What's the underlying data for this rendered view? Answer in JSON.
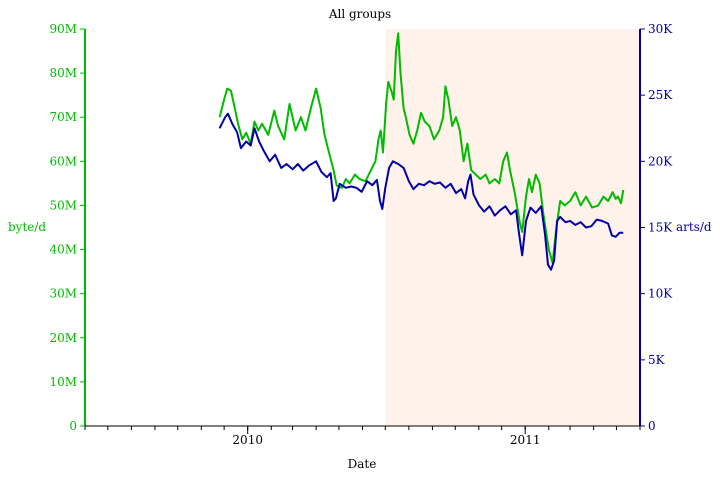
{
  "chart_data": {
    "type": "line",
    "title": "All groups",
    "xlabel": "Date",
    "ylabel_left": "byte/d",
    "ylabel_right": "arts/d",
    "colors": {
      "left_axis": "#00bb00",
      "right_axis": "#000099",
      "highlight": "#fff2ea",
      "bytes_series": "#00bb00",
      "arts_series": "#0000aa"
    },
    "x_range": [
      "2009-06-01",
      "2011-06-01"
    ],
    "x_ticks": [
      {
        "date": "2010-01-01",
        "label": "2010"
      },
      {
        "date": "2011-01-01",
        "label": "2011"
      }
    ],
    "highlight_range": [
      "2010-07-01",
      "2011-06-01"
    ],
    "y_left": {
      "range": [
        0,
        90000000
      ],
      "ticks": [
        {
          "value": 0,
          "label": "0"
        },
        {
          "value": 10000000,
          "label": "10M"
        },
        {
          "value": 20000000,
          "label": "20M"
        },
        {
          "value": 30000000,
          "label": "30M"
        },
        {
          "value": 40000000,
          "label": "40M"
        },
        {
          "value": 50000000,
          "label": "50M"
        },
        {
          "value": 60000000,
          "label": "60M"
        },
        {
          "value": 70000000,
          "label": "70M"
        },
        {
          "value": 80000000,
          "label": "80M"
        },
        {
          "value": 90000000,
          "label": "90M"
        }
      ]
    },
    "y_right": {
      "range": [
        0,
        30000
      ],
      "ticks": [
        {
          "value": 0,
          "label": "0"
        },
        {
          "value": 5000,
          "label": "5K"
        },
        {
          "value": 10000,
          "label": "10K"
        },
        {
          "value": 15000,
          "label": "15K"
        },
        {
          "value": 20000,
          "label": "20K"
        },
        {
          "value": 25000,
          "label": "25K"
        },
        {
          "value": 30000,
          "label": "30K"
        }
      ]
    },
    "series": [
      {
        "axis": "left",
        "color": "#00bb00",
        "points": [
          [
            "2009-11-25",
            70000000
          ],
          [
            "2009-12-01",
            74000000
          ],
          [
            "2009-12-05",
            76500000
          ],
          [
            "2009-12-10",
            76000000
          ],
          [
            "2009-12-15",
            72000000
          ],
          [
            "2009-12-20",
            68000000
          ],
          [
            "2009-12-25",
            65000000
          ],
          [
            "2009-12-30",
            66500000
          ],
          [
            "2010-01-05",
            64000000
          ],
          [
            "2010-01-10",
            69000000
          ],
          [
            "2010-01-15",
            67000000
          ],
          [
            "2010-01-20",
            68500000
          ],
          [
            "2010-01-28",
            66000000
          ],
          [
            "2010-02-05",
            71500000
          ],
          [
            "2010-02-10",
            68000000
          ],
          [
            "2010-02-18",
            65000000
          ],
          [
            "2010-02-25",
            73000000
          ],
          [
            "2010-03-05",
            67000000
          ],
          [
            "2010-03-12",
            70000000
          ],
          [
            "2010-03-18",
            67000000
          ],
          [
            "2010-03-25",
            72000000
          ],
          [
            "2010-04-01",
            76500000
          ],
          [
            "2010-04-07",
            72000000
          ],
          [
            "2010-04-12",
            66000000
          ],
          [
            "2010-04-18",
            62000000
          ],
          [
            "2010-04-24",
            58000000
          ],
          [
            "2010-04-28",
            54500000
          ],
          [
            "2010-05-05",
            54000000
          ],
          [
            "2010-05-10",
            56000000
          ],
          [
            "2010-05-15",
            55000000
          ],
          [
            "2010-05-22",
            57000000
          ],
          [
            "2010-05-28",
            56000000
          ],
          [
            "2010-06-05",
            55500000
          ],
          [
            "2010-06-12",
            58000000
          ],
          [
            "2010-06-18",
            60000000
          ],
          [
            "2010-06-22",
            65000000
          ],
          [
            "2010-06-25",
            67000000
          ],
          [
            "2010-06-28",
            62000000
          ],
          [
            "2010-07-02",
            73000000
          ],
          [
            "2010-07-05",
            78000000
          ],
          [
            "2010-07-09",
            76000000
          ],
          [
            "2010-07-12",
            74000000
          ],
          [
            "2010-07-15",
            85000000
          ],
          [
            "2010-07-18",
            89000000
          ],
          [
            "2010-07-21",
            80000000
          ],
          [
            "2010-07-25",
            72000000
          ],
          [
            "2010-07-28",
            70000000
          ],
          [
            "2010-08-02",
            66000000
          ],
          [
            "2010-08-07",
            64000000
          ],
          [
            "2010-08-12",
            67000000
          ],
          [
            "2010-08-17",
            71000000
          ],
          [
            "2010-08-22",
            69000000
          ],
          [
            "2010-08-28",
            68000000
          ],
          [
            "2010-09-03",
            65000000
          ],
          [
            "2010-09-10",
            67000000
          ],
          [
            "2010-09-15",
            70000000
          ],
          [
            "2010-09-18",
            77000000
          ],
          [
            "2010-09-22",
            74000000
          ],
          [
            "2010-09-27",
            68000000
          ],
          [
            "2010-10-02",
            70000000
          ],
          [
            "2010-10-07",
            67000000
          ],
          [
            "2010-10-12",
            60000000
          ],
          [
            "2010-10-17",
            64000000
          ],
          [
            "2010-10-22",
            58000000
          ],
          [
            "2010-10-28",
            57000000
          ],
          [
            "2010-11-03",
            56000000
          ],
          [
            "2010-11-10",
            57000000
          ],
          [
            "2010-11-15",
            55000000
          ],
          [
            "2010-11-22",
            56000000
          ],
          [
            "2010-11-28",
            55000000
          ],
          [
            "2010-12-03",
            60000000
          ],
          [
            "2010-12-08",
            62000000
          ],
          [
            "2010-12-12",
            58000000
          ],
          [
            "2010-12-18",
            53000000
          ],
          [
            "2010-12-25",
            46000000
          ],
          [
            "2010-12-28",
            44000000
          ],
          [
            "2011-01-02",
            52000000
          ],
          [
            "2011-01-06",
            56000000
          ],
          [
            "2011-01-10",
            53000000
          ],
          [
            "2011-01-15",
            57000000
          ],
          [
            "2011-01-20",
            55000000
          ],
          [
            "2011-01-25",
            48000000
          ],
          [
            "2011-02-01",
            40000000
          ],
          [
            "2011-02-06",
            37000000
          ],
          [
            "2011-02-11",
            45000000
          ],
          [
            "2011-02-16",
            51000000
          ],
          [
            "2011-02-22",
            50000000
          ],
          [
            "2011-03-01",
            51000000
          ],
          [
            "2011-03-08",
            53000000
          ],
          [
            "2011-03-15",
            50000000
          ],
          [
            "2011-03-22",
            52000000
          ],
          [
            "2011-03-30",
            49500000
          ],
          [
            "2011-04-07",
            50000000
          ],
          [
            "2011-04-14",
            52000000
          ],
          [
            "2011-04-20",
            51000000
          ],
          [
            "2011-04-26",
            53000000
          ],
          [
            "2011-04-30",
            51500000
          ],
          [
            "2011-05-03",
            52000000
          ],
          [
            "2011-05-07",
            50500000
          ],
          [
            "2011-05-10",
            53500000
          ]
        ]
      },
      {
        "axis": "right",
        "color": "#0000aa",
        "points": [
          [
            "2009-11-25",
            22500
          ],
          [
            "2009-12-02",
            23300
          ],
          [
            "2009-12-06",
            23600
          ],
          [
            "2009-12-12",
            22800
          ],
          [
            "2009-12-18",
            22200
          ],
          [
            "2009-12-23",
            21000
          ],
          [
            "2009-12-30",
            21500
          ],
          [
            "2010-01-05",
            21200
          ],
          [
            "2010-01-10",
            22500
          ],
          [
            "2010-01-16",
            21500
          ],
          [
            "2010-01-22",
            20800
          ],
          [
            "2010-01-30",
            20000
          ],
          [
            "2010-02-06",
            20500
          ],
          [
            "2010-02-14",
            19500
          ],
          [
            "2010-02-21",
            19800
          ],
          [
            "2010-03-01",
            19400
          ],
          [
            "2010-03-08",
            19800
          ],
          [
            "2010-03-15",
            19300
          ],
          [
            "2010-03-23",
            19700
          ],
          [
            "2010-04-01",
            20000
          ],
          [
            "2010-04-08",
            19200
          ],
          [
            "2010-04-15",
            18800
          ],
          [
            "2010-04-20",
            19100
          ],
          [
            "2010-04-24",
            17000
          ],
          [
            "2010-04-27",
            17200
          ],
          [
            "2010-05-02",
            18300
          ],
          [
            "2010-05-10",
            18000
          ],
          [
            "2010-05-17",
            18100
          ],
          [
            "2010-05-24",
            18000
          ],
          [
            "2010-05-31",
            17700
          ],
          [
            "2010-06-07",
            18500
          ],
          [
            "2010-06-14",
            18200
          ],
          [
            "2010-06-20",
            18600
          ],
          [
            "2010-06-24",
            17000
          ],
          [
            "2010-06-27",
            16400
          ],
          [
            "2010-07-01",
            18000
          ],
          [
            "2010-07-06",
            19500
          ],
          [
            "2010-07-11",
            20000
          ],
          [
            "2010-07-18",
            19800
          ],
          [
            "2010-07-25",
            19500
          ],
          [
            "2010-08-01",
            18500
          ],
          [
            "2010-08-07",
            17900
          ],
          [
            "2010-08-14",
            18300
          ],
          [
            "2010-08-21",
            18200
          ],
          [
            "2010-08-28",
            18500
          ],
          [
            "2010-09-04",
            18300
          ],
          [
            "2010-09-11",
            18400
          ],
          [
            "2010-09-18",
            18000
          ],
          [
            "2010-09-25",
            18300
          ],
          [
            "2010-10-02",
            17600
          ],
          [
            "2010-10-09",
            17900
          ],
          [
            "2010-10-14",
            17200
          ],
          [
            "2010-10-18",
            18500
          ],
          [
            "2010-10-21",
            19000
          ],
          [
            "2010-10-25",
            17500
          ],
          [
            "2010-11-01",
            16700
          ],
          [
            "2010-11-08",
            16200
          ],
          [
            "2010-11-15",
            16600
          ],
          [
            "2010-11-22",
            15900
          ],
          [
            "2010-11-29",
            16300
          ],
          [
            "2010-12-06",
            16600
          ],
          [
            "2010-12-13",
            16000
          ],
          [
            "2010-12-20",
            16300
          ],
          [
            "2010-12-24",
            14500
          ],
          [
            "2010-12-28",
            12900
          ],
          [
            "2011-01-02",
            15500
          ],
          [
            "2011-01-08",
            16500
          ],
          [
            "2011-01-15",
            16100
          ],
          [
            "2011-01-22",
            16600
          ],
          [
            "2011-01-27",
            14500
          ],
          [
            "2011-01-31",
            12200
          ],
          [
            "2011-02-04",
            11800
          ],
          [
            "2011-02-08",
            12500
          ],
          [
            "2011-02-12",
            15500
          ],
          [
            "2011-02-16",
            15800
          ],
          [
            "2011-02-23",
            15400
          ],
          [
            "2011-03-01",
            15500
          ],
          [
            "2011-03-08",
            15200
          ],
          [
            "2011-03-15",
            15400
          ],
          [
            "2011-03-22",
            15000
          ],
          [
            "2011-03-29",
            15100
          ],
          [
            "2011-04-05",
            15600
          ],
          [
            "2011-04-12",
            15500
          ],
          [
            "2011-04-20",
            15300
          ],
          [
            "2011-04-25",
            14400
          ],
          [
            "2011-04-30",
            14300
          ],
          [
            "2011-05-05",
            14600
          ],
          [
            "2011-05-10",
            14600
          ]
        ]
      }
    ]
  }
}
